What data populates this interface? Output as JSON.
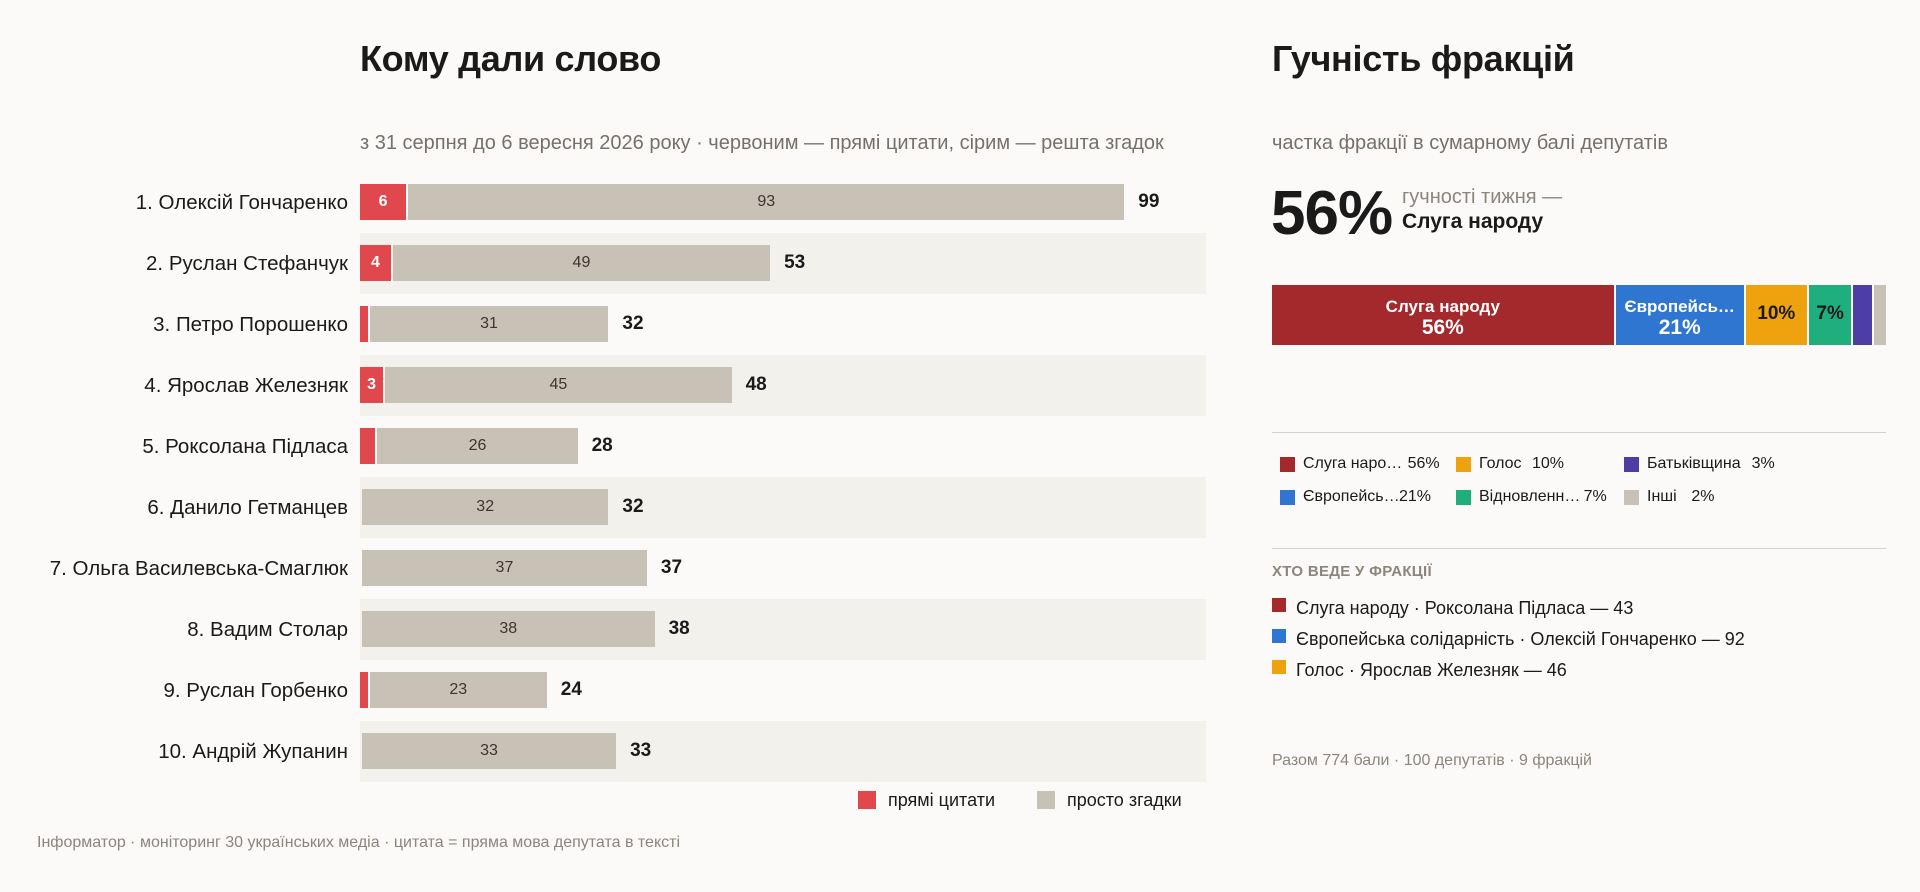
{
  "chart_data": [
    {
      "type": "bar",
      "title": "Кому дали слово",
      "subtitle": "з 31 серпня до 6 вересня 2026 року · червоним — прямі цитати, сірим — решта згадок",
      "categories": [
        "1. Олексій Гончаренко",
        "2. Руслан Стефанчук",
        "3. Петро Порошенко",
        "4. Ярослав Железняк",
        "5. Роксолана Підласа",
        "6. Данило Гетманцев",
        "7. Ольга Василевська-Смаглюк",
        "8. Вадим Столар",
        "9. Руслан Горбенко",
        "10. Андрій Жупанин"
      ],
      "series": [
        {
          "name": "прямі цитати",
          "color": "#e0484e",
          "values": [
            6,
            4,
            1,
            3,
            2,
            0,
            0,
            0,
            1,
            0
          ]
        },
        {
          "name": "просто згадки",
          "color": "#c8c1b5",
          "values": [
            93,
            49,
            31,
            45,
            26,
            32,
            37,
            38,
            23,
            33
          ]
        }
      ],
      "totals": [
        99,
        53,
        32,
        48,
        28,
        32,
        37,
        38,
        24,
        33
      ],
      "xlim": [
        0,
        100
      ],
      "legend_position": "bottom-right",
      "grid": false
    },
    {
      "type": "bar",
      "title": "Гучність фракцій",
      "subtitle": "частка фракції в сумарному балі депутатів",
      "categories": [
        "Слуга народу",
        "Європейська солідарність",
        "Голос",
        "Відновлення",
        "Батьківщина",
        "Інші"
      ],
      "values": [
        56,
        21,
        10,
        7,
        3,
        2
      ],
      "unit": "%",
      "legend_position": "bottom",
      "grid": false
    }
  ],
  "left": {
    "footer": "Інформатор · моніторинг 30 українських медіа · цитата = пряма мова депутата в тексті"
  },
  "right": {
    "big_pct": "56%",
    "lead_line1": "гучності тижня —",
    "lead_line2": "Слуга народу",
    "factions": [
      {
        "label": "Слуга народу",
        "short": "Слуга наро…",
        "pct": "56%",
        "color": "#a3292d",
        "text_color": "#ffffff"
      },
      {
        "label": "Європейська солідарність",
        "short": "Європейсь…",
        "pct": "21%",
        "color": "#2f76d1",
        "text_color": "#ffffff"
      },
      {
        "label": "Голос",
        "short": "Голос",
        "pct": "10%",
        "color": "#eea20d",
        "text_color": "#1a1a1a"
      },
      {
        "label": "Відновлення",
        "short": "Відновленн…",
        "pct": "7%",
        "color": "#1fae7e",
        "text_color": "#1a1a1a"
      },
      {
        "label": "Батьківщина",
        "short": "Батьківщина",
        "pct": "3%",
        "color": "#4c3ea5",
        "text_color": "#ffffff"
      },
      {
        "label": "Інші",
        "short": "Інші",
        "pct": "2%",
        "color": "#c8c1b5",
        "text_color": "#1a1a1a"
      }
    ],
    "stack_labels": [
      {
        "name": "Слуга народу",
        "pct": "56%"
      },
      {
        "name": "Європейсь…",
        "pct": "21%"
      },
      {
        "name": "",
        "pct": "10%"
      },
      {
        "name": "",
        "pct": "7%"
      }
    ],
    "leaders_heading": "ХТО ВЕДЕ У ФРАКЦІЇ",
    "leaders": [
      {
        "text": "Слуга народу · Роксолана Підласа — 43",
        "color": "#a3292d"
      },
      {
        "text": "Європейська солідарність · Олексій Гончаренко — 92",
        "color": "#2f76d1"
      },
      {
        "text": "Голос · Ярослав Железняк — 46",
        "color": "#eea20d"
      }
    ],
    "summary": "Разом 774 бали · 100 депутатів · 9 фракцій"
  }
}
